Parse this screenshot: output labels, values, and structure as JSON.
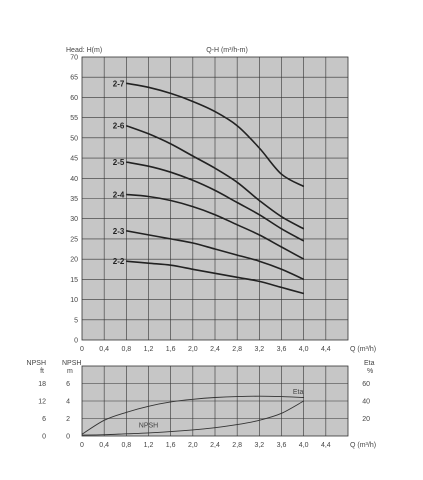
{
  "chart_data": [
    {
      "type": "line",
      "title": "Q-H (m³/h-m)",
      "ylabel": "Head: H(m)",
      "xlabel": "Q (m³/h)",
      "xlim": [
        0,
        4.8
      ],
      "ylim": [
        0,
        70
      ],
      "x_ticks": [
        "0",
        "0,4",
        "0,8",
        "1,2",
        "1,6",
        "2,0",
        "2,4",
        "2,8",
        "3,2",
        "3,6",
        "4,0",
        "4,4"
      ],
      "y_ticks": [
        "0",
        "5",
        "10",
        "15",
        "20",
        "25",
        "30",
        "35",
        "40",
        "45",
        "50",
        "55",
        "60",
        "65",
        "70"
      ],
      "grid": true,
      "series": [
        {
          "name": "2-7",
          "x": [
            0.8,
            1.2,
            1.6,
            2.0,
            2.4,
            2.8,
            3.2,
            3.6,
            4.0
          ],
          "y": [
            63.5,
            62.5,
            61.0,
            59.0,
            56.5,
            53.0,
            47.5,
            41.0,
            38.0
          ]
        },
        {
          "name": "2-6",
          "x": [
            0.8,
            1.2,
            1.6,
            2.0,
            2.4,
            2.8,
            3.2,
            3.6,
            4.0
          ],
          "y": [
            53.0,
            51.0,
            48.5,
            45.5,
            42.5,
            39.0,
            34.5,
            30.5,
            27.5
          ]
        },
        {
          "name": "2-5",
          "x": [
            0.8,
            1.2,
            1.6,
            2.0,
            2.4,
            2.8,
            3.2,
            3.6,
            4.0
          ],
          "y": [
            44.0,
            43.0,
            41.5,
            39.5,
            37.0,
            34.0,
            31.0,
            27.5,
            24.5
          ]
        },
        {
          "name": "2-4",
          "x": [
            0.8,
            1.2,
            1.6,
            2.0,
            2.4,
            2.8,
            3.2,
            3.6,
            4.0
          ],
          "y": [
            36.0,
            35.5,
            34.5,
            33.0,
            31.0,
            28.5,
            26.0,
            23.0,
            20.0
          ]
        },
        {
          "name": "2-3",
          "x": [
            0.8,
            1.2,
            1.6,
            2.0,
            2.4,
            2.8,
            3.2,
            3.6,
            4.0
          ],
          "y": [
            27.0,
            26.0,
            25.0,
            24.0,
            22.5,
            21.0,
            19.5,
            17.5,
            15.0
          ]
        },
        {
          "name": "2-2",
          "x": [
            0.8,
            1.2,
            1.6,
            2.0,
            2.4,
            2.8,
            3.2,
            3.6,
            4.0
          ],
          "y": [
            19.5,
            19.0,
            18.5,
            17.5,
            16.5,
            15.5,
            14.5,
            13.0,
            11.5
          ]
        }
      ]
    },
    {
      "type": "line",
      "title": "",
      "xlabel": "Q (m³/h)",
      "xlim": [
        0,
        4.8
      ],
      "x_ticks": [
        "0",
        "0,4",
        "0,8",
        "1,2",
        "1,6",
        "2,0",
        "2,4",
        "2,8",
        "3,2",
        "3,6",
        "4,0",
        "4,4"
      ],
      "y_left": {
        "label": "NPSH",
        "unit": "m",
        "ticks": [
          "0",
          "2",
          "4",
          "6"
        ],
        "ylim": [
          0,
          8
        ]
      },
      "y_far_left": {
        "label": "NPSH",
        "unit": "ft",
        "ticks": [
          "0",
          "6",
          "12",
          "18"
        ]
      },
      "y_right": {
        "label": "Eta",
        "unit": "%",
        "ticks": [
          "20",
          "40",
          "60"
        ],
        "ylim": [
          0,
          80
        ]
      },
      "grid": true,
      "series": [
        {
          "name": "Eta",
          "axis": "right",
          "x": [
            0,
            0.4,
            0.8,
            1.2,
            1.6,
            2.0,
            2.4,
            2.8,
            3.2,
            3.6,
            4.0
          ],
          "y": [
            2,
            18,
            27,
            34,
            39,
            42,
            44,
            45,
            45.5,
            45,
            44
          ]
        },
        {
          "name": "NPSH",
          "axis": "left",
          "x": [
            0,
            0.4,
            0.8,
            1.2,
            1.6,
            2.0,
            2.4,
            2.8,
            3.2,
            3.6,
            4.0
          ],
          "y": [
            0.1,
            0.15,
            0.25,
            0.35,
            0.5,
            0.7,
            0.95,
            1.3,
            1.8,
            2.6,
            4.0
          ]
        }
      ]
    }
  ]
}
